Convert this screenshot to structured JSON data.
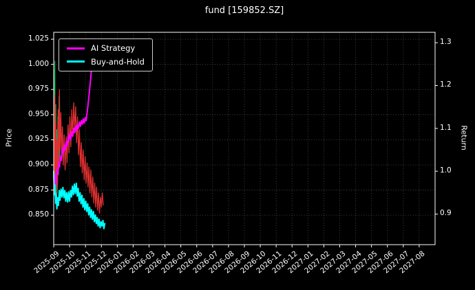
{
  "title": "fund [159852.SZ]",
  "legend": {
    "items": [
      {
        "label": "AI Strategy",
        "color": "#ff00ff"
      },
      {
        "label": "Buy-and-Hold",
        "color": "#00ffff"
      }
    ]
  },
  "chart_data": {
    "type": "line",
    "title": "fund [159852.SZ]",
    "grid": true,
    "legend_position": "upper left",
    "background": "#000000",
    "x_axis": {
      "span_months": 24,
      "tick_labels": [
        "2025-09",
        "2025-10",
        "2025-11",
        "2025-12",
        "2026-01",
        "2026-02",
        "2026-03",
        "2026-04",
        "2026-05",
        "2026-06",
        "2026-07",
        "2026-08",
        "2026-09",
        "2026-10",
        "2026-11",
        "2026-12",
        "2027-01",
        "2027-02",
        "2027-03",
        "2027-04",
        "2027-05",
        "2027-06",
        "2027-07",
        "2027-08"
      ]
    },
    "y_left": {
      "label": "Price",
      "lim": [
        0.8207,
        1.0319
      ],
      "ticks": [
        1.025,
        1.0,
        0.975,
        0.95,
        0.925,
        0.9,
        0.875,
        0.85
      ],
      "tick_labels": [
        "1.025",
        "1.000",
        "0.975",
        "0.950",
        "0.925",
        "0.900",
        "0.875",
        "0.850"
      ]
    },
    "y_right": {
      "label": "Return",
      "lim": [
        0.8286,
        1.3243
      ],
      "ticks": [
        1.3,
        1.2,
        1.1,
        1.0,
        0.9
      ],
      "tick_labels": [
        "1.3",
        "1.2",
        "1.1",
        "1.0",
        "0.9"
      ]
    },
    "series": [
      {
        "name": "fund-price-green-segments",
        "color": "#00b050",
        "axis": "left",
        "width": 1.3,
        "points": [
          [
            0.0,
            0.995
          ],
          [
            0.04,
            0.905
          ],
          [
            0.07,
            1.003
          ],
          [
            0.1,
            0.885
          ],
          [
            0.13,
            0.96
          ],
          [
            0.16,
            0.87
          ],
          [
            0.19,
            0.935
          ],
          [
            0.22,
            0.872
          ],
          [
            0.26,
            0.948
          ],
          [
            0.3,
            0.89
          ],
          [
            0.34,
            0.968
          ],
          [
            0.38,
            0.905
          ],
          [
            0.42,
            0.94
          ]
        ]
      },
      {
        "name": "fund-price-red-segments",
        "color": "#e03030",
        "axis": "left",
        "width": 1.3,
        "points": [
          [
            0.02,
            0.962
          ],
          [
            0.05,
            0.878
          ],
          [
            0.08,
            0.97
          ],
          [
            0.11,
            0.892
          ],
          [
            0.14,
            0.942
          ],
          [
            0.17,
            0.868
          ],
          [
            0.21,
            0.925
          ],
          [
            0.24,
            0.88
          ],
          [
            0.28,
            0.955
          ],
          [
            0.32,
            0.898
          ],
          [
            0.36,
            0.975
          ],
          [
            0.4,
            0.915
          ],
          [
            0.45,
            0.952
          ],
          [
            0.5,
            0.908
          ],
          [
            0.55,
            0.938
          ],
          [
            0.6,
            0.9
          ],
          [
            0.66,
            0.93
          ],
          [
            0.72,
            0.895
          ],
          [
            0.78,
            0.928
          ],
          [
            0.84,
            0.902
          ],
          [
            0.9,
            0.94
          ],
          [
            0.96,
            0.912
          ],
          [
            1.02,
            0.948
          ],
          [
            1.08,
            0.918
          ],
          [
            1.14,
            0.955
          ],
          [
            1.2,
            0.928
          ],
          [
            1.26,
            0.962
          ],
          [
            1.32,
            0.935
          ],
          [
            1.38,
            0.958
          ],
          [
            1.44,
            0.922
          ],
          [
            1.5,
            0.948
          ],
          [
            1.56,
            0.91
          ],
          [
            1.62,
            0.935
          ],
          [
            1.68,
            0.898
          ],
          [
            1.74,
            0.922
          ],
          [
            1.8,
            0.892
          ],
          [
            1.86,
            0.915
          ],
          [
            1.92,
            0.885
          ],
          [
            1.98,
            0.908
          ],
          [
            2.04,
            0.882
          ],
          [
            2.1,
            0.902
          ],
          [
            2.16,
            0.878
          ],
          [
            2.22,
            0.898
          ],
          [
            2.28,
            0.872
          ],
          [
            2.34,
            0.895
          ],
          [
            2.4,
            0.868
          ],
          [
            2.46,
            0.888
          ],
          [
            2.52,
            0.862
          ],
          [
            2.58,
            0.882
          ],
          [
            2.64,
            0.858
          ],
          [
            2.7,
            0.878
          ],
          [
            2.76,
            0.855
          ],
          [
            2.82,
            0.872
          ],
          [
            2.88,
            0.852
          ],
          [
            2.94,
            0.868
          ],
          [
            3.0,
            0.858
          ],
          [
            3.06,
            0.872
          ],
          [
            3.12,
            0.86
          ]
        ]
      },
      {
        "name": "AI Strategy",
        "color": "#ff00ff",
        "axis": "right",
        "width": 2,
        "points": [
          [
            0.0,
            0.986
          ],
          [
            0.05,
            0.97
          ],
          [
            0.09,
            0.992
          ],
          [
            0.13,
            0.966
          ],
          [
            0.17,
            0.985
          ],
          [
            0.22,
            1.005
          ],
          [
            0.27,
            0.995
          ],
          [
            0.32,
            1.02
          ],
          [
            0.37,
            1.01
          ],
          [
            0.42,
            1.035
          ],
          [
            0.48,
            1.025
          ],
          [
            0.54,
            1.052
          ],
          [
            0.6,
            1.042
          ],
          [
            0.66,
            1.06
          ],
          [
            0.72,
            1.05
          ],
          [
            0.78,
            1.068
          ],
          [
            0.84,
            1.058
          ],
          [
            0.9,
            1.08
          ],
          [
            0.96,
            1.07
          ],
          [
            1.02,
            1.088
          ],
          [
            1.08,
            1.075
          ],
          [
            1.14,
            1.092
          ],
          [
            1.2,
            1.082
          ],
          [
            1.26,
            1.1
          ],
          [
            1.32,
            1.09
          ],
          [
            1.38,
            1.105
          ],
          [
            1.44,
            1.095
          ],
          [
            1.5,
            1.11
          ],
          [
            1.56,
            1.1
          ],
          [
            1.62,
            1.115
          ],
          [
            1.68,
            1.105
          ],
          [
            1.74,
            1.118
          ],
          [
            1.8,
            1.11
          ],
          [
            1.86,
            1.122
          ],
          [
            1.92,
            1.112
          ],
          [
            1.98,
            1.125
          ],
          [
            2.04,
            1.118
          ],
          [
            2.1,
            1.135
          ],
          [
            2.16,
            1.155
          ],
          [
            2.22,
            1.175
          ],
          [
            2.28,
            1.198
          ],
          [
            2.33,
            1.218
          ],
          [
            2.38,
            1.24
          ]
        ]
      },
      {
        "name": "Buy-and-Hold",
        "color": "#00ffff",
        "axis": "right",
        "width": 2,
        "points": [
          [
            0.0,
            1.0
          ],
          [
            0.04,
            0.945
          ],
          [
            0.08,
            0.968
          ],
          [
            0.12,
            0.925
          ],
          [
            0.16,
            0.948
          ],
          [
            0.2,
            0.912
          ],
          [
            0.25,
            0.938
          ],
          [
            0.3,
            0.92
          ],
          [
            0.35,
            0.955
          ],
          [
            0.4,
            0.932
          ],
          [
            0.46,
            0.958
          ],
          [
            0.52,
            0.94
          ],
          [
            0.58,
            0.962
          ],
          [
            0.64,
            0.938
          ],
          [
            0.7,
            0.955
          ],
          [
            0.76,
            0.93
          ],
          [
            0.82,
            0.95
          ],
          [
            0.88,
            0.928
          ],
          [
            0.94,
            0.952
          ],
          [
            1.0,
            0.93
          ],
          [
            1.06,
            0.955
          ],
          [
            1.12,
            0.94
          ],
          [
            1.18,
            0.965
          ],
          [
            1.24,
            0.945
          ],
          [
            1.3,
            0.97
          ],
          [
            1.36,
            0.948
          ],
          [
            1.42,
            0.972
          ],
          [
            1.48,
            0.942
          ],
          [
            1.54,
            0.96
          ],
          [
            1.6,
            0.93
          ],
          [
            1.66,
            0.95
          ],
          [
            1.72,
            0.924
          ],
          [
            1.78,
            0.944
          ],
          [
            1.84,
            0.916
          ],
          [
            1.9,
            0.936
          ],
          [
            1.96,
            0.91
          ],
          [
            2.02,
            0.93
          ],
          [
            2.08,
            0.906
          ],
          [
            2.14,
            0.924
          ],
          [
            2.2,
            0.898
          ],
          [
            2.26,
            0.916
          ],
          [
            2.32,
            0.892
          ],
          [
            2.38,
            0.91
          ],
          [
            2.44,
            0.888
          ],
          [
            2.5,
            0.906
          ],
          [
            2.56,
            0.882
          ],
          [
            2.62,
            0.898
          ],
          [
            2.68,
            0.878
          ],
          [
            2.74,
            0.892
          ],
          [
            2.8,
            0.872
          ],
          [
            2.86,
            0.888
          ],
          [
            2.92,
            0.868
          ],
          [
            2.98,
            0.882
          ],
          [
            3.04,
            0.872
          ],
          [
            3.1,
            0.885
          ],
          [
            3.16,
            0.866
          ],
          [
            3.22,
            0.878
          ]
        ]
      }
    ]
  }
}
